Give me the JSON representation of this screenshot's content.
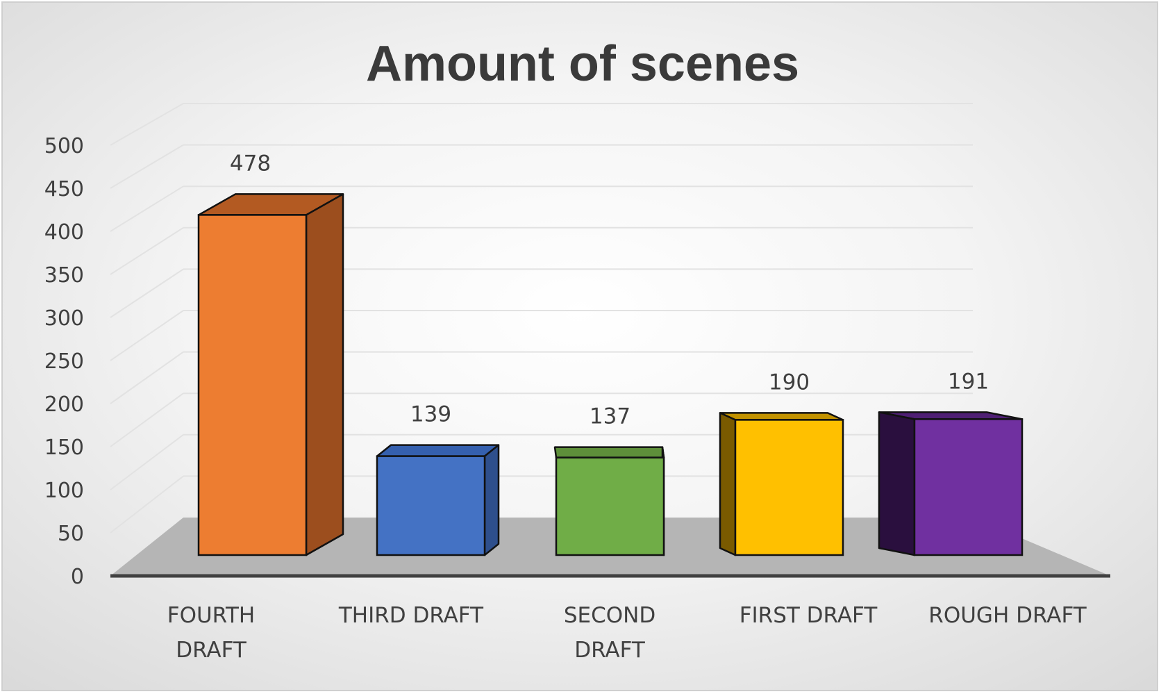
{
  "chart_data": {
    "type": "bar",
    "title": "Amount of scenes",
    "xlabel": "",
    "ylabel": "",
    "categories": [
      "FOURTH DRAFT",
      "THIRD DRAFT",
      "SECOND DRAFT",
      "FIRST DRAFT",
      "ROUGH DRAFT"
    ],
    "category_lines": [
      [
        "FOURTH",
        "DRAFT"
      ],
      [
        "THIRD DRAFT"
      ],
      [
        "SECOND",
        "DRAFT"
      ],
      [
        "FIRST DRAFT"
      ],
      [
        "ROUGH DRAFT"
      ]
    ],
    "values": [
      478,
      139,
      137,
      190,
      191
    ],
    "data_labels": [
      "478",
      "139",
      "137",
      "190",
      "191"
    ],
    "ylim": [
      0,
      500
    ],
    "yticks": [
      0,
      50,
      100,
      150,
      200,
      250,
      300,
      350,
      400,
      450,
      500
    ],
    "grid": true,
    "legend": "none",
    "style": "3d-column",
    "colors": {
      "front": [
        "#ED7D31",
        "#4472C4",
        "#70AD47",
        "#FFC000",
        "#7030A0"
      ],
      "side": [
        "#9C4E1E",
        "#2E4F8C",
        "#4E7A31",
        "#7A5A00",
        "#2A0F3E"
      ],
      "top": [
        "#B35A22",
        "#3560AE",
        "#5E8F3A",
        "#C29200",
        "#4F1F74"
      ]
    }
  }
}
